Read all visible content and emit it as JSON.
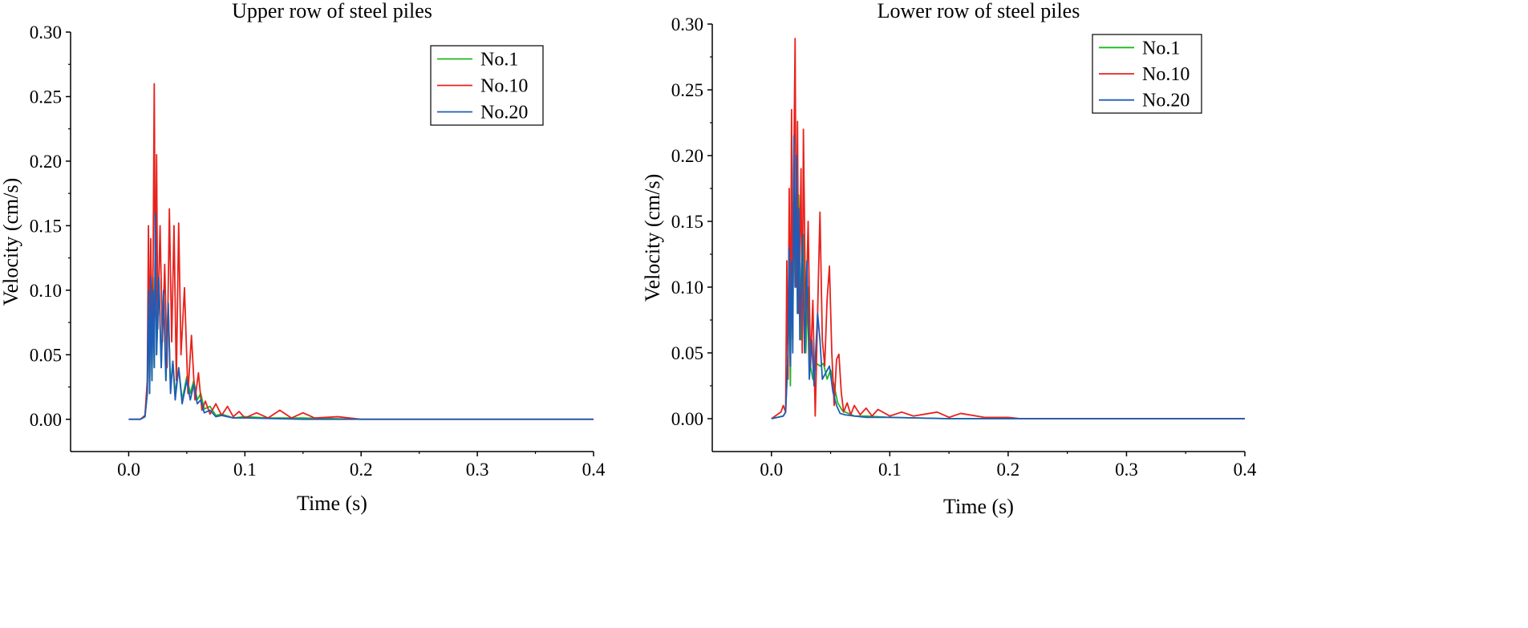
{
  "chart_data": [
    {
      "type": "line",
      "title": "Upper row of steel piles",
      "xlabel": "Time (s)",
      "ylabel": "Velocity (cm/s)",
      "xlim": [
        -0.05,
        0.4
      ],
      "ylim": [
        -0.025,
        0.3
      ],
      "xticks": [
        0.0,
        0.1,
        0.2,
        0.3,
        0.4
      ],
      "xtick_labels": [
        "0.0",
        "0.1",
        "0.2",
        "0.3",
        "0.4"
      ],
      "yticks": [
        0.0,
        0.05,
        0.1,
        0.15,
        0.2,
        0.25,
        0.3
      ],
      "ytick_labels": [
        "0.00",
        "0.05",
        "0.10",
        "0.15",
        "0.20",
        "0.25",
        "0.30"
      ],
      "legend": "top-right",
      "series": [
        {
          "name": "No.1",
          "color": "#1fb71f",
          "points": [
            [
              0.0,
              0.0
            ],
            [
              0.01,
              0.0
            ],
            [
              0.014,
              0.002
            ],
            [
              0.016,
              0.02
            ],
            [
              0.017,
              0.09
            ],
            [
              0.018,
              0.02
            ],
            [
              0.019,
              0.12
            ],
            [
              0.02,
              0.03
            ],
            [
              0.021,
              0.11
            ],
            [
              0.022,
              0.04
            ],
            [
              0.023,
              0.15
            ],
            [
              0.024,
              0.05
            ],
            [
              0.026,
              0.11
            ],
            [
              0.028,
              0.04
            ],
            [
              0.03,
              0.1
            ],
            [
              0.032,
              0.03
            ],
            [
              0.034,
              0.09
            ],
            [
              0.036,
              0.025
            ],
            [
              0.038,
              0.045
            ],
            [
              0.04,
              0.02
            ],
            [
              0.043,
              0.04
            ],
            [
              0.046,
              0.015
            ],
            [
              0.05,
              0.033
            ],
            [
              0.053,
              0.02
            ],
            [
              0.056,
              0.03
            ],
            [
              0.059,
              0.015
            ],
            [
              0.062,
              0.02
            ],
            [
              0.065,
              0.008
            ],
            [
              0.07,
              0.01
            ],
            [
              0.075,
              0.003
            ],
            [
              0.08,
              0.004
            ],
            [
              0.09,
              0.001
            ],
            [
              0.1,
              0.002
            ],
            [
              0.12,
              0.001
            ],
            [
              0.15,
              0.001
            ],
            [
              0.2,
              0.0
            ],
            [
              0.3,
              0.0
            ],
            [
              0.4,
              0.0
            ]
          ]
        },
        {
          "name": "No.10",
          "color": "#e8221c",
          "points": [
            [
              0.0,
              0.0
            ],
            [
              0.01,
              0.0
            ],
            [
              0.014,
              0.003
            ],
            [
              0.016,
              0.03
            ],
            [
              0.017,
              0.15
            ],
            [
              0.018,
              0.05
            ],
            [
              0.019,
              0.14
            ],
            [
              0.02,
              0.06
            ],
            [
              0.021,
              0.12
            ],
            [
              0.022,
              0.26
            ],
            [
              0.023,
              0.08
            ],
            [
              0.024,
              0.205
            ],
            [
              0.025,
              0.07
            ],
            [
              0.027,
              0.15
            ],
            [
              0.029,
              0.06
            ],
            [
              0.031,
              0.12
            ],
            [
              0.033,
              0.04
            ],
            [
              0.035,
              0.163
            ],
            [
              0.037,
              0.06
            ],
            [
              0.039,
              0.15
            ],
            [
              0.041,
              0.03
            ],
            [
              0.043,
              0.152
            ],
            [
              0.045,
              0.05
            ],
            [
              0.048,
              0.102
            ],
            [
              0.051,
              0.02
            ],
            [
              0.054,
              0.065
            ],
            [
              0.057,
              0.015
            ],
            [
              0.06,
              0.036
            ],
            [
              0.063,
              0.007
            ],
            [
              0.066,
              0.014
            ],
            [
              0.07,
              0.004
            ],
            [
              0.075,
              0.012
            ],
            [
              0.08,
              0.003
            ],
            [
              0.085,
              0.01
            ],
            [
              0.09,
              0.002
            ],
            [
              0.095,
              0.006
            ],
            [
              0.1,
              0.001
            ],
            [
              0.11,
              0.005
            ],
            [
              0.12,
              0.001
            ],
            [
              0.13,
              0.007
            ],
            [
              0.14,
              0.001
            ],
            [
              0.15,
              0.005
            ],
            [
              0.16,
              0.001
            ],
            [
              0.18,
              0.002
            ],
            [
              0.2,
              0.0
            ],
            [
              0.3,
              0.0
            ],
            [
              0.4,
              0.0
            ]
          ]
        },
        {
          "name": "No.20",
          "color": "#1f5cb8",
          "points": [
            [
              0.0,
              0.0
            ],
            [
              0.01,
              0.0
            ],
            [
              0.014,
              0.002
            ],
            [
              0.016,
              0.02
            ],
            [
              0.017,
              0.1
            ],
            [
              0.018,
              0.02
            ],
            [
              0.019,
              0.11
            ],
            [
              0.02,
              0.03
            ],
            [
              0.021,
              0.1
            ],
            [
              0.022,
              0.04
            ],
            [
              0.023,
              0.16
            ],
            [
              0.024,
              0.05
            ],
            [
              0.026,
              0.11
            ],
            [
              0.028,
              0.04
            ],
            [
              0.03,
              0.1
            ],
            [
              0.032,
              0.03
            ],
            [
              0.034,
              0.09
            ],
            [
              0.036,
              0.02
            ],
            [
              0.038,
              0.045
            ],
            [
              0.04,
              0.015
            ],
            [
              0.043,
              0.04
            ],
            [
              0.046,
              0.012
            ],
            [
              0.05,
              0.03
            ],
            [
              0.053,
              0.015
            ],
            [
              0.056,
              0.027
            ],
            [
              0.059,
              0.012
            ],
            [
              0.062,
              0.015
            ],
            [
              0.065,
              0.005
            ],
            [
              0.07,
              0.007
            ],
            [
              0.075,
              0.002
            ],
            [
              0.08,
              0.003
            ],
            [
              0.09,
              0.001
            ],
            [
              0.1,
              0.001
            ],
            [
              0.15,
              0.0
            ],
            [
              0.2,
              0.0
            ],
            [
              0.3,
              0.0
            ],
            [
              0.4,
              0.0
            ]
          ]
        }
      ]
    },
    {
      "type": "line",
      "title": "Lower row of steel piles",
      "xlabel": "Time (s)",
      "ylabel": "Velocity (cm/s)",
      "xlim": [
        -0.05,
        0.4
      ],
      "ylim": [
        -0.025,
        0.3
      ],
      "xticks": [
        0.0,
        0.1,
        0.2,
        0.3,
        0.4
      ],
      "xtick_labels": [
        "0.0",
        "0.1",
        "0.2",
        "0.3",
        "0.4"
      ],
      "yticks": [
        0.0,
        0.05,
        0.1,
        0.15,
        0.2,
        0.25,
        0.3
      ],
      "ytick_labels": [
        "0.00",
        "0.05",
        "0.10",
        "0.15",
        "0.20",
        "0.25",
        "0.30"
      ],
      "legend": "top-right",
      "series": [
        {
          "name": "No.1",
          "color": "#1fb71f",
          "points": [
            [
              0.0,
              0.0
            ],
            [
              0.01,
              0.002
            ],
            [
              0.012,
              0.005
            ],
            [
              0.014,
              0.05
            ],
            [
              0.015,
              0.1
            ],
            [
              0.016,
              0.025
            ],
            [
              0.017,
              0.13
            ],
            [
              0.018,
              0.06
            ],
            [
              0.019,
              0.19
            ],
            [
              0.02,
              0.1
            ],
            [
              0.021,
              0.2
            ],
            [
              0.022,
              0.08
            ],
            [
              0.023,
              0.17
            ],
            [
              0.025,
              0.06
            ],
            [
              0.027,
              0.14
            ],
            [
              0.029,
              0.05
            ],
            [
              0.031,
              0.1
            ],
            [
              0.033,
              0.04
            ],
            [
              0.035,
              0.03
            ],
            [
              0.038,
              0.042
            ],
            [
              0.041,
              0.04
            ],
            [
              0.044,
              0.042
            ],
            [
              0.047,
              0.03
            ],
            [
              0.05,
              0.037
            ],
            [
              0.053,
              0.025
            ],
            [
              0.056,
              0.012
            ],
            [
              0.06,
              0.006
            ],
            [
              0.065,
              0.004
            ],
            [
              0.07,
              0.002
            ],
            [
              0.08,
              0.002
            ],
            [
              0.1,
              0.001
            ],
            [
              0.15,
              0.0
            ],
            [
              0.2,
              0.0
            ],
            [
              0.3,
              0.0
            ],
            [
              0.4,
              0.0
            ]
          ]
        },
        {
          "name": "No.10",
          "color": "#e8221c",
          "points": [
            [
              0.0,
              0.0
            ],
            [
              0.008,
              0.005
            ],
            [
              0.01,
              0.01
            ],
            [
              0.012,
              0.005
            ],
            [
              0.013,
              0.12
            ],
            [
              0.014,
              0.03
            ],
            [
              0.015,
              0.175
            ],
            [
              0.016,
              0.04
            ],
            [
              0.017,
              0.235
            ],
            [
              0.018,
              0.08
            ],
            [
              0.019,
              0.2
            ],
            [
              0.02,
              0.289
            ],
            [
              0.021,
              0.1
            ],
            [
              0.022,
              0.226
            ],
            [
              0.023,
              0.08
            ],
            [
              0.025,
              0.19
            ],
            [
              0.026,
              0.05
            ],
            [
              0.027,
              0.22
            ],
            [
              0.029,
              0.07
            ],
            [
              0.031,
              0.15
            ],
            [
              0.033,
              0.04
            ],
            [
              0.035,
              0.09
            ],
            [
              0.037,
              0.002
            ],
            [
              0.039,
              0.08
            ],
            [
              0.041,
              0.157
            ],
            [
              0.043,
              0.06
            ],
            [
              0.045,
              0.04
            ],
            [
              0.047,
              0.09
            ],
            [
              0.049,
              0.116
            ],
            [
              0.051,
              0.05
            ],
            [
              0.053,
              0.01
            ],
            [
              0.055,
              0.045
            ],
            [
              0.057,
              0.049
            ],
            [
              0.059,
              0.02
            ],
            [
              0.061,
              0.005
            ],
            [
              0.064,
              0.012
            ],
            [
              0.067,
              0.003
            ],
            [
              0.07,
              0.01
            ],
            [
              0.075,
              0.003
            ],
            [
              0.08,
              0.008
            ],
            [
              0.085,
              0.002
            ],
            [
              0.09,
              0.007
            ],
            [
              0.1,
              0.002
            ],
            [
              0.11,
              0.005
            ],
            [
              0.12,
              0.002
            ],
            [
              0.14,
              0.005
            ],
            [
              0.15,
              0.001
            ],
            [
              0.16,
              0.004
            ],
            [
              0.18,
              0.001
            ],
            [
              0.2,
              0.001
            ],
            [
              0.21,
              0.0
            ],
            [
              0.3,
              0.0
            ],
            [
              0.4,
              0.0
            ]
          ]
        },
        {
          "name": "No.20",
          "color": "#1f5cb8",
          "points": [
            [
              0.0,
              0.0
            ],
            [
              0.01,
              0.002
            ],
            [
              0.012,
              0.005
            ],
            [
              0.014,
              0.05
            ],
            [
              0.015,
              0.13
            ],
            [
              0.016,
              0.04
            ],
            [
              0.017,
              0.12
            ],
            [
              0.018,
              0.05
            ],
            [
              0.019,
              0.215
            ],
            [
              0.02,
              0.1
            ],
            [
              0.021,
              0.2
            ],
            [
              0.022,
              0.08
            ],
            [
              0.023,
              0.16
            ],
            [
              0.024,
              0.06
            ],
            [
              0.026,
              0.14
            ],
            [
              0.028,
              0.05
            ],
            [
              0.03,
              0.12
            ],
            [
              0.032,
              0.03
            ],
            [
              0.034,
              0.06
            ],
            [
              0.036,
              0.025
            ],
            [
              0.039,
              0.08
            ],
            [
              0.041,
              0.06
            ],
            [
              0.043,
              0.03
            ],
            [
              0.046,
              0.035
            ],
            [
              0.049,
              0.04
            ],
            [
              0.052,
              0.02
            ],
            [
              0.055,
              0.01
            ],
            [
              0.058,
              0.004
            ],
            [
              0.062,
              0.003
            ],
            [
              0.07,
              0.002
            ],
            [
              0.08,
              0.001
            ],
            [
              0.1,
              0.001
            ],
            [
              0.15,
              0.0
            ],
            [
              0.2,
              0.0
            ],
            [
              0.3,
              0.0
            ],
            [
              0.4,
              0.0
            ]
          ]
        }
      ]
    }
  ]
}
